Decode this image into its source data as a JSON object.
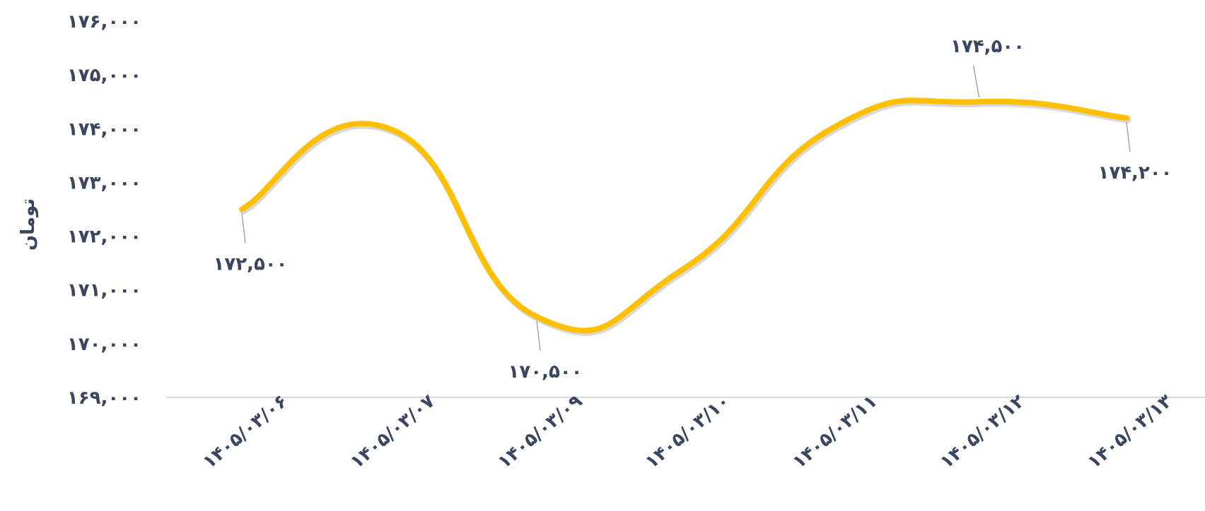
{
  "chart_data": {
    "type": "line",
    "title": "",
    "xlabel": "",
    "ylabel": "تومان",
    "categories": [
      "۱۴۰۵/۰۳/۰۶",
      "۱۴۰۵/۰۳/۰۷",
      "۱۴۰۵/۰۳/۰۹",
      "۱۴۰۵/۰۳/۱۰",
      "۱۴۰۵/۰۳/۱۱",
      "۱۴۰۵/۰۳/۱۲",
      "۱۴۰۵/۰۳/۱۳"
    ],
    "values": [
      172500,
      174000,
      170500,
      171400,
      174000,
      174500,
      174200
    ],
    "ylim": [
      169000,
      176000
    ],
    "yticks": [
      176000,
      175000,
      174000,
      173000,
      172000,
      171000,
      170000,
      169000
    ],
    "ytick_labels": [
      "۱۷۶,۰۰۰",
      "۱۷۵,۰۰۰",
      "۱۷۴,۰۰۰",
      "۱۷۳,۰۰۰",
      "۱۷۲,۰۰۰",
      "۱۷۱,۰۰۰",
      "۱۷۰,۰۰۰",
      "۱۶۹,۰۰۰"
    ],
    "data_labels": [
      {
        "index": 0,
        "text": "۱۷۲,۵۰۰",
        "position": "below"
      },
      {
        "index": 2,
        "text": "۱۷۰,۵۰۰",
        "position": "below"
      },
      {
        "index": 5,
        "text": "۱۷۴,۵۰۰",
        "position": "above"
      },
      {
        "index": 6,
        "text": "۱۷۴,۲۰۰",
        "position": "below"
      }
    ],
    "line_color": "#FFC000",
    "text_color": "#3a4560",
    "grid": false,
    "smooth": true,
    "legend": "none"
  }
}
